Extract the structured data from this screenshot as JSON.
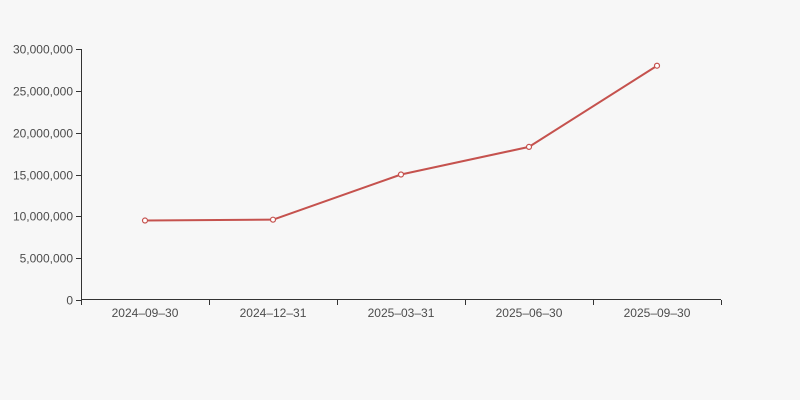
{
  "page": {
    "background_color": "#f7f7f7"
  },
  "chart_data": {
    "type": "line",
    "title": "",
    "xlabel": "",
    "ylabel": "",
    "categories": [
      "2024–09–30",
      "2024–12–31",
      "2025–03–31",
      "2025–06–30",
      "2025–09–30"
    ],
    "series": [
      {
        "name": "value",
        "values": [
          9500000,
          9600000,
          15000000,
          18300000,
          28000000
        ]
      }
    ],
    "ylim": [
      0,
      30000000
    ],
    "y_tick_interval": 5000000,
    "y_tick_labels": [
      "0",
      "5,000,000",
      "10,000,000",
      "15,000,000",
      "20,000,000",
      "25,000,000",
      "30,000,000"
    ],
    "grid": false,
    "legend": false,
    "marker": "open-circle",
    "colors": {
      "line": "#c5524e",
      "marker_fill": "#ffffff",
      "axis": "#333333",
      "tick_label": "#4c4c4c",
      "background": "#f7f7f7"
    }
  }
}
